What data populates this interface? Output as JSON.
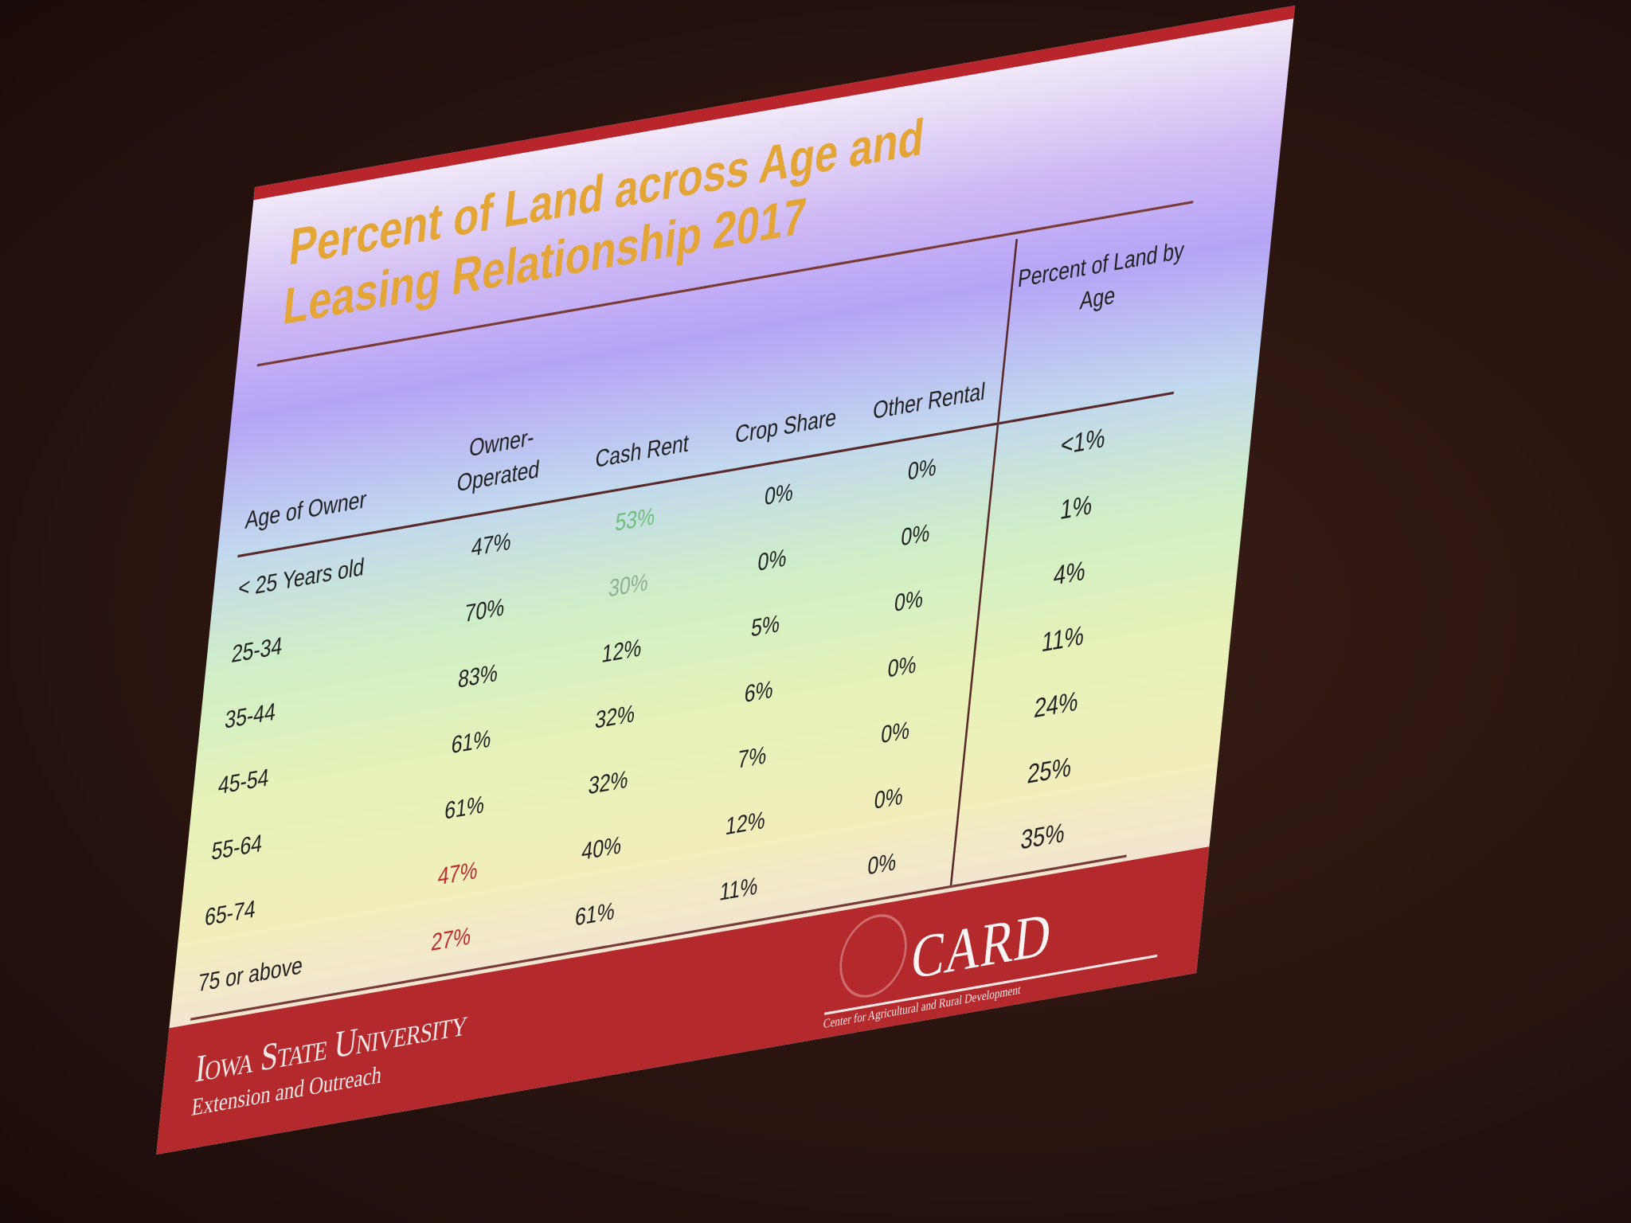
{
  "title": "Percent of Land across Age and Leasing Relationship 2017",
  "table": {
    "header": [
      "Age of Owner",
      "Owner-Operated",
      "Cash Rent",
      "Crop Share",
      "Other Rental",
      "Percent of Land by Age"
    ],
    "rows": [
      [
        "< 25 Years old",
        "47%",
        "53%",
        "0%",
        "0%",
        "<1%"
      ],
      [
        "25-34",
        "70%",
        "30%",
        "0%",
        "0%",
        "1%"
      ],
      [
        "35-44",
        "83%",
        "12%",
        "5%",
        "0%",
        "4%"
      ],
      [
        "45-54",
        "61%",
        "32%",
        "6%",
        "0%",
        "11%"
      ],
      [
        "55-64",
        "61%",
        "32%",
        "7%",
        "0%",
        "24%"
      ],
      [
        "65-74",
        "47%",
        "40%",
        "12%",
        "0%",
        "25%"
      ],
      [
        "75 or above",
        "27%",
        "61%",
        "11%",
        "0%",
        "35%"
      ]
    ]
  },
  "footer": {
    "university": "Iowa State University",
    "unit": "Extension and Outreach",
    "logo": "CARD",
    "logo_subtitle": "Center for Agricultural and Rural Development"
  }
}
